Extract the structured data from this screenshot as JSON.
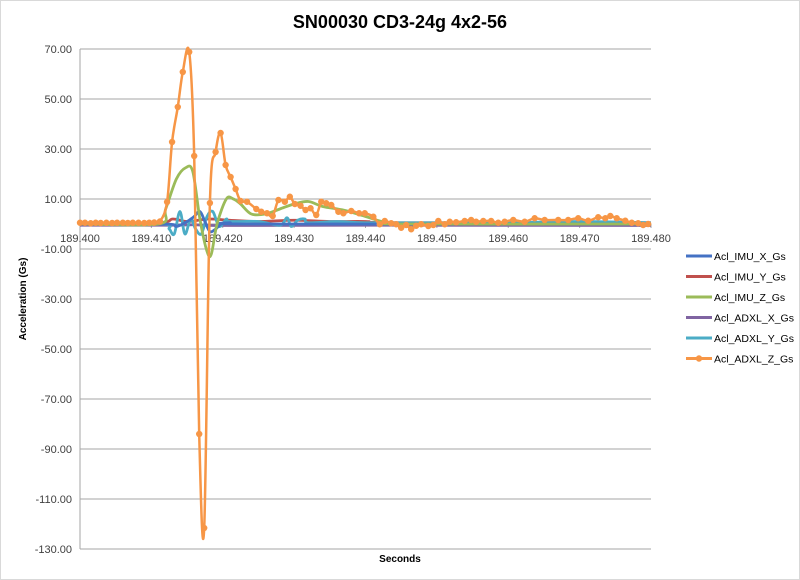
{
  "chart_data": {
    "type": "line",
    "title": "SN00030 CD3-24g 4x2-56",
    "xlabel": "Seconds",
    "ylabel": "Acceleration (Gs)",
    "xlim": [
      189.4,
      189.48
    ],
    "ylim": [
      -130,
      70
    ],
    "x_ticks": [
      "189.400",
      "189.410",
      "189.420",
      "189.430",
      "189.440",
      "189.450",
      "189.460",
      "189.470",
      "189.480"
    ],
    "y_ticks": [
      "70.00",
      "50.00",
      "30.00",
      "10.00",
      "-10.00",
      "-30.00",
      "-50.00",
      "-70.00",
      "-90.00",
      "-110.00",
      "-130.00"
    ],
    "grid": true,
    "legend_position": "right",
    "series": [
      {
        "name": "Acl_IMU_X_Gs",
        "color": "#4472c4",
        "markers": false,
        "points": [
          [
            189.4,
            0
          ],
          [
            189.412,
            0
          ],
          [
            189.4135,
            -1
          ],
          [
            189.415,
            1
          ],
          [
            189.416,
            3
          ],
          [
            189.4168,
            5
          ],
          [
            189.4175,
            1
          ],
          [
            189.4182,
            -3
          ],
          [
            189.419,
            -2
          ],
          [
            189.4198,
            0
          ],
          [
            189.421,
            0.5
          ],
          [
            189.425,
            0
          ],
          [
            189.48,
            0
          ]
        ]
      },
      {
        "name": "Acl_IMU_Y_Gs",
        "color": "#c0504d",
        "markers": false,
        "points": [
          [
            189.4,
            0.5
          ],
          [
            189.411,
            0.5
          ],
          [
            189.413,
            2
          ],
          [
            189.415,
            1
          ],
          [
            189.418,
            2
          ],
          [
            189.421,
            1.5
          ],
          [
            189.425,
            1
          ],
          [
            189.43,
            1.5
          ],
          [
            189.435,
            1
          ],
          [
            189.44,
            1
          ],
          [
            189.445,
            0.5
          ],
          [
            189.48,
            0.5
          ]
        ]
      },
      {
        "name": "Acl_IMU_Z_Gs",
        "color": "#9bbb59",
        "markers": false,
        "points": [
          [
            189.4,
            0
          ],
          [
            189.411,
            0
          ],
          [
            189.412,
            6
          ],
          [
            189.4135,
            18
          ],
          [
            189.4148,
            22.5
          ],
          [
            189.4158,
            21
          ],
          [
            189.4168,
            2
          ],
          [
            189.4178,
            -11
          ],
          [
            189.4184,
            -12
          ],
          [
            189.4192,
            0
          ],
          [
            189.4205,
            10
          ],
          [
            189.4215,
            10
          ],
          [
            189.4225,
            8
          ],
          [
            189.424,
            4
          ],
          [
            189.426,
            4
          ],
          [
            189.428,
            6
          ],
          [
            189.43,
            8
          ],
          [
            189.432,
            9
          ],
          [
            189.434,
            7
          ],
          [
            189.437,
            5.5
          ],
          [
            189.44,
            3
          ],
          [
            189.443,
            0.5
          ],
          [
            189.446,
            0
          ],
          [
            189.48,
            0
          ]
        ]
      },
      {
        "name": "Acl_ADXL_X_Gs",
        "color": "#8064a2",
        "markers": false,
        "points": [
          [
            189.4,
            -0.5
          ],
          [
            189.412,
            -0.5
          ],
          [
            189.416,
            -0.3
          ],
          [
            189.42,
            -0.6
          ],
          [
            189.44,
            -0.5
          ],
          [
            189.48,
            -0.6
          ]
        ]
      },
      {
        "name": "Acl_ADXL_Y_Gs",
        "color": "#4bacc6",
        "markers": false,
        "points": [
          [
            189.4,
            0
          ],
          [
            189.4115,
            0
          ],
          [
            189.4125,
            -2
          ],
          [
            189.4132,
            -4
          ],
          [
            189.414,
            5
          ],
          [
            189.4147,
            -4
          ],
          [
            189.4155,
            2
          ],
          [
            189.4162,
            -2
          ],
          [
            189.417,
            -4
          ],
          [
            189.4178,
            3
          ],
          [
            189.4186,
            5
          ],
          [
            189.4195,
            -1
          ],
          [
            189.4205,
            2
          ],
          [
            189.421,
            1
          ],
          [
            189.425,
            1
          ],
          [
            189.428,
            -0.5
          ],
          [
            189.429,
            2.5
          ],
          [
            189.4296,
            -1
          ],
          [
            189.4305,
            1.5
          ],
          [
            189.4315,
            2
          ],
          [
            189.432,
            0.5
          ],
          [
            189.436,
            1
          ],
          [
            189.44,
            0.5
          ],
          [
            189.45,
            0.5
          ],
          [
            189.46,
            0.5
          ],
          [
            189.47,
            1
          ],
          [
            189.48,
            0.5
          ]
        ]
      },
      {
        "name": "Acl_ADXL_Z_Gs",
        "color": "#f79646",
        "markers": true,
        "points": [
          [
            189.4,
            0.5
          ],
          [
            189.4007,
            0.5
          ],
          [
            189.4015,
            0.3
          ],
          [
            189.4022,
            0.5
          ],
          [
            189.4029,
            0.4
          ],
          [
            189.4037,
            0.5
          ],
          [
            189.4045,
            0.4
          ],
          [
            189.4052,
            0.5
          ],
          [
            189.406,
            0.5
          ],
          [
            189.4067,
            0.4
          ],
          [
            189.4074,
            0.5
          ],
          [
            189.4082,
            0.5
          ],
          [
            189.409,
            0.4
          ],
          [
            189.4097,
            0.5
          ],
          [
            189.4104,
            0.6
          ],
          [
            189.4112,
            1.0
          ],
          [
            189.4122,
            8.8
          ],
          [
            189.4129,
            32.8
          ],
          [
            189.4137,
            46.8
          ],
          [
            189.4144,
            60.8
          ],
          [
            189.4153,
            68.8
          ],
          [
            189.416,
            27.2
          ],
          [
            189.4167,
            -84
          ],
          [
            189.4174,
            -121.6
          ],
          [
            189.4182,
            8.4
          ],
          [
            189.419,
            28.8
          ],
          [
            189.4197,
            36.4
          ],
          [
            189.4204,
            23.6
          ],
          [
            189.4211,
            18.8
          ],
          [
            189.4218,
            14
          ],
          [
            189.4225,
            9.2
          ],
          [
            189.4234,
            8.9
          ],
          [
            189.4247,
            6.0
          ],
          [
            189.4254,
            4.9
          ],
          [
            189.4262,
            4.3
          ],
          [
            189.427,
            3.2
          ],
          [
            189.4278,
            9.6
          ],
          [
            189.4287,
            8.9
          ],
          [
            189.4294,
            10.9
          ],
          [
            189.4301,
            8.0
          ],
          [
            189.4309,
            7.3
          ],
          [
            189.4316,
            5.6
          ],
          [
            189.4323,
            6.3
          ],
          [
            189.4331,
            3.6
          ],
          [
            189.4338,
            8.9
          ],
          [
            189.4345,
            8.3
          ],
          [
            189.4352,
            7.6
          ],
          [
            189.4362,
            4.9
          ],
          [
            189.4369,
            4.3
          ],
          [
            189.438,
            5.2
          ],
          [
            189.4391,
            4.3
          ],
          [
            189.4399,
            4.3
          ],
          [
            189.4411,
            2.9
          ],
          [
            189.442,
            -0.1
          ],
          [
            189.4427,
            1.2
          ],
          [
            189.4436,
            0.3
          ],
          [
            189.4443,
            -0.1
          ],
          [
            189.445,
            -1.5
          ],
          [
            189.4457,
            -0.4
          ],
          [
            189.4464,
            -2.1
          ],
          [
            189.4471,
            -0.7
          ],
          [
            189.4478,
            -0.1
          ],
          [
            189.4488,
            -0.8
          ],
          [
            189.4495,
            -0.4
          ],
          [
            189.4502,
            1.2
          ],
          [
            189.4511,
            -0.1
          ],
          [
            189.4518,
            0.9
          ],
          [
            189.4527,
            0.7
          ],
          [
            189.4539,
            1.2
          ],
          [
            189.4548,
            1.6
          ],
          [
            189.4555,
            0.9
          ],
          [
            189.4565,
            1.2
          ],
          [
            189.4576,
            1.2
          ],
          [
            189.4586,
            0.5
          ],
          [
            189.4595,
            0.9
          ],
          [
            189.4607,
            1.6
          ],
          [
            189.4623,
            0.9
          ],
          [
            189.4637,
            2.3
          ],
          [
            189.4651,
            1.6
          ],
          [
            189.467,
            1.6
          ],
          [
            189.4684,
            1.6
          ],
          [
            189.4698,
            2.3
          ],
          [
            189.4712,
            1.3
          ],
          [
            189.4726,
            2.7
          ],
          [
            189.4736,
            2.3
          ],
          [
            189.4743,
            3.2
          ],
          [
            189.4752,
            2.3
          ],
          [
            189.4764,
            1.3
          ],
          [
            189.4773,
            0.5
          ],
          [
            189.4782,
            0.3
          ],
          [
            189.4789,
            -0.4
          ],
          [
            189.4796,
            0.0
          ]
        ]
      }
    ]
  }
}
